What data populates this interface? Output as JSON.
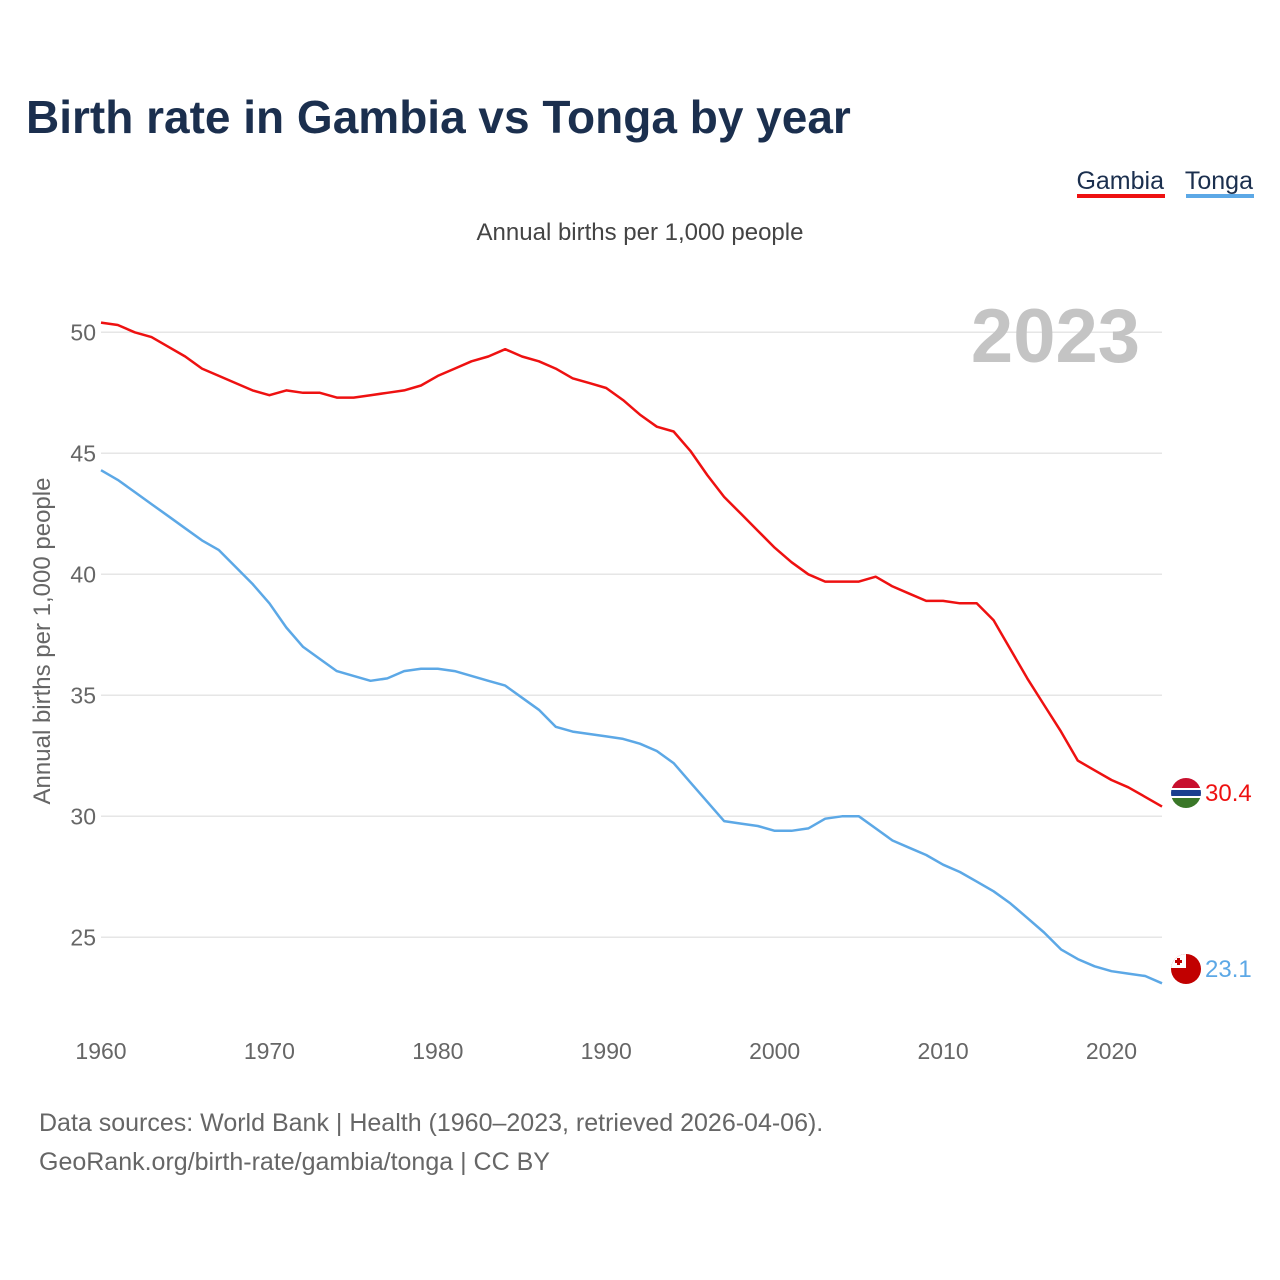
{
  "chart_data": {
    "type": "line",
    "title": "Birth rate in Gambia vs Tonga by year",
    "subtitle": "Annual births per 1,000 people",
    "ylabel": "Annual births per 1,000 people",
    "xlabel": "",
    "xlim": [
      1960,
      2023
    ],
    "ylim": [
      21.5,
      51.5
    ],
    "y_ticks": [
      25,
      30,
      35,
      40,
      45,
      50
    ],
    "x_ticks": [
      1960,
      1970,
      1980,
      1990,
      2000,
      2010,
      2020
    ],
    "grid": true,
    "legend_placement": "top-right",
    "current_year": "2023",
    "x": [
      1960,
      1961,
      1962,
      1963,
      1964,
      1965,
      1966,
      1967,
      1968,
      1969,
      1970,
      1971,
      1972,
      1973,
      1974,
      1975,
      1976,
      1977,
      1978,
      1979,
      1980,
      1981,
      1982,
      1983,
      1984,
      1985,
      1986,
      1987,
      1988,
      1989,
      1990,
      1991,
      1992,
      1993,
      1994,
      1995,
      1996,
      1997,
      1998,
      1999,
      2000,
      2001,
      2002,
      2003,
      2004,
      2005,
      2006,
      2007,
      2008,
      2009,
      2010,
      2011,
      2012,
      2013,
      2014,
      2015,
      2016,
      2017,
      2018,
      2019,
      2020,
      2021,
      2022,
      2023
    ],
    "series": [
      {
        "name": "Gambia",
        "color": "#ee1111",
        "end_label": "30.4",
        "values": [
          50.4,
          50.3,
          50.0,
          49.8,
          49.4,
          49.0,
          48.5,
          48.2,
          47.9,
          47.6,
          47.4,
          47.6,
          47.5,
          47.5,
          47.3,
          47.3,
          47.4,
          47.5,
          47.6,
          47.8,
          48.2,
          48.5,
          48.8,
          49.0,
          49.3,
          49.0,
          48.8,
          48.5,
          48.1,
          47.9,
          47.7,
          47.2,
          46.6,
          46.1,
          45.9,
          45.1,
          44.1,
          43.2,
          42.5,
          41.8,
          41.1,
          40.5,
          40.0,
          39.7,
          39.7,
          39.7,
          39.9,
          39.5,
          39.2,
          38.9,
          38.9,
          38.8,
          38.8,
          38.1,
          36.9,
          35.7,
          34.6,
          33.5,
          32.3,
          31.9,
          31.5,
          31.2,
          30.8,
          30.4
        ]
      },
      {
        "name": "Tonga",
        "color": "#5ca8e6",
        "end_label": "23.1",
        "values": [
          44.3,
          43.9,
          43.4,
          42.9,
          42.4,
          41.9,
          41.4,
          41.0,
          40.3,
          39.6,
          38.8,
          37.8,
          37.0,
          36.5,
          36.0,
          35.8,
          35.6,
          35.7,
          36.0,
          36.1,
          36.1,
          36.0,
          35.8,
          35.6,
          35.4,
          34.9,
          34.4,
          33.7,
          33.5,
          33.4,
          33.3,
          33.2,
          33.0,
          32.7,
          32.2,
          31.4,
          30.6,
          29.8,
          29.7,
          29.6,
          29.4,
          29.4,
          29.5,
          29.9,
          30.0,
          30.0,
          29.5,
          29.0,
          28.7,
          28.4,
          28.0,
          27.7,
          27.3,
          26.9,
          26.4,
          25.8,
          25.2,
          24.5,
          24.1,
          23.8,
          23.6,
          23.5,
          23.4,
          23.1
        ]
      }
    ]
  },
  "legend": {
    "gambia_label": "Gambia",
    "tonga_label": "Tonga"
  },
  "footer": {
    "line1": "Data sources: World Bank | Health (1960–2023, retrieved 2026-04-06).",
    "line2": "GeoRank.org/birth-rate/gambia/tonga | CC BY"
  },
  "colors": {
    "title": "#1b2f4e",
    "gambia": "#ee1111",
    "tonga": "#5ca8e6",
    "grid": "#e6e6e6",
    "year_watermark": "#c4c4c4"
  },
  "flags": {
    "gambia": "gambia-flag-icon",
    "tonga": "tonga-flag-icon"
  }
}
